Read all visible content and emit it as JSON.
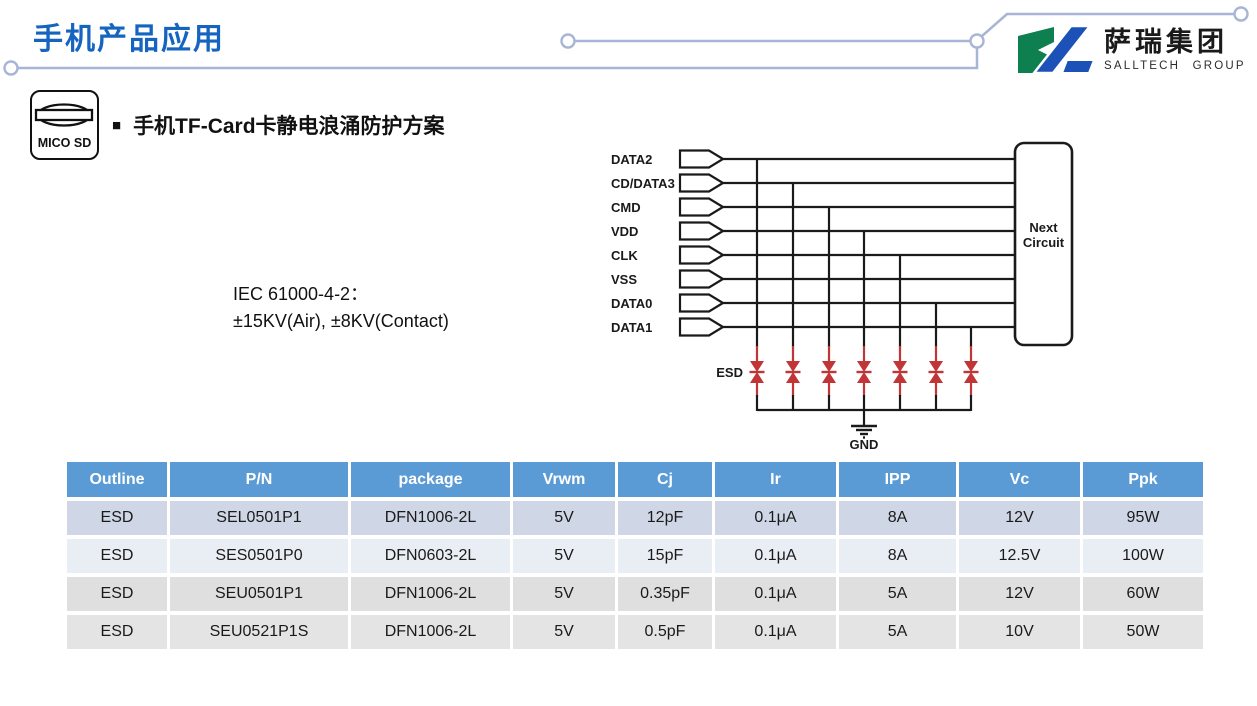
{
  "header": {
    "title": "手机产品应用",
    "logo": {
      "cn": "萨瑞集团",
      "en": "SALLTECH GROUP"
    }
  },
  "section": {
    "bullet": "■",
    "icon_label": "MICO SD",
    "heading": "手机TF-Card卡静电浪涌防护方案"
  },
  "spec": {
    "line1": "IEC 61000-4-2：",
    "line2": "±15KV(Air), ±8KV(Contact)"
  },
  "schematic": {
    "signals": [
      "DATA2",
      "CD/DATA3",
      "CMD",
      "VDD",
      "CLK",
      "VSS",
      "DATA0",
      "DATA1"
    ],
    "next_circuit": [
      "Next",
      "Circuit"
    ],
    "esd_label": "ESD",
    "gnd_label": "GND",
    "diode_color": "#c23537"
  },
  "table": {
    "headers": [
      "Outline",
      "P/N",
      "package",
      "Vrwm",
      "Cj",
      "Ir",
      "IPP",
      "Vc",
      "Ppk"
    ],
    "rows": [
      [
        "ESD",
        "SEL0501P1",
        "DFN1006-2L",
        "5V",
        "12pF",
        "0.1μA",
        "8A",
        "12V",
        "95W"
      ],
      [
        "ESD",
        "SES0501P0",
        "DFN0603-2L",
        "5V",
        "15pF",
        "0.1μA",
        "8A",
        "12.5V",
        "100W"
      ],
      [
        "ESD",
        "SEU0501P1",
        "DFN1006-2L",
        "5V",
        "0.35pF",
        "0.1μA",
        "5A",
        "12V",
        "60W"
      ],
      [
        "ESD",
        "SEU0521P1S",
        "DFN1006-2L",
        "5V",
        "0.5pF",
        "0.1μA",
        "5A",
        "10V",
        "50W"
      ]
    ],
    "header_bg": "#5b9bd5",
    "row_colors": [
      "#cfd6e6",
      "#e9edf4",
      "#dfdfdf",
      "#e4e4e4"
    ]
  },
  "colors": {
    "title_blue": "#1464c0",
    "trace": "#a8b5d5",
    "logo_green": "#0e7f4e",
    "logo_blue": "#1c51b8",
    "line_black": "#1a1a1a"
  }
}
